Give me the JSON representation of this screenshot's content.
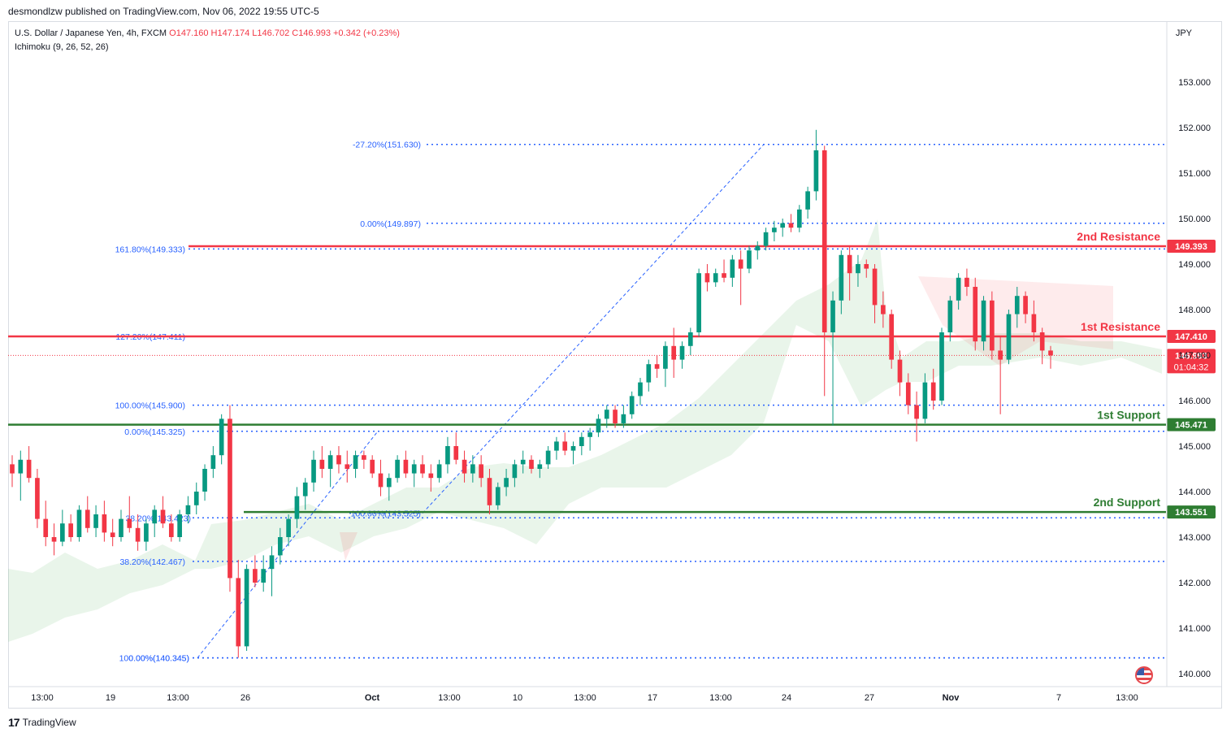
{
  "header": {
    "publish_line": "desmondlzw published on TradingView.com, Nov 06, 2022 19:55 UTC-5",
    "symbol": "U.S. Dollar / Japanese Yen, 4h, FXCM",
    "ohlc": "O147.160 H147.174 L146.702 C146.993 +0.342 (+0.23%)",
    "indicator": "Ichimoku (9, 26, 52, 26)",
    "currency": "JPY"
  },
  "footer": {
    "brand": "TradingView",
    "logo": "tv-logo"
  },
  "chart_data": {
    "type": "candlestick",
    "ylim": [
      140.0,
      153.0
    ],
    "y_ticks": [
      "153.000",
      "152.000",
      "151.000",
      "150.000",
      "149.000",
      "148.000",
      "147.000",
      "146.000",
      "145.000",
      "144.000",
      "143.000",
      "142.000",
      "141.000",
      "140.000"
    ],
    "x_ticks": [
      "13:00",
      "19",
      "13:00",
      "26",
      "Oct",
      "13:00",
      "10",
      "13:00",
      "17",
      "13:00",
      "24",
      "27",
      "Nov",
      "7",
      "13:00"
    ],
    "x_tick_bold": [
      "Oct",
      "Nov"
    ],
    "levels": [
      {
        "label": "2nd Resistance",
        "price": 149.393,
        "price_label": "149.393",
        "color": "#f23645"
      },
      {
        "label": "1st Resistance",
        "price": 147.41,
        "price_label": "147.410",
        "color": "#f23645"
      },
      {
        "label": "1st Support",
        "price": 145.471,
        "price_label": "145.471",
        "color": "#2e7d32"
      },
      {
        "label": "2nd Support",
        "price": 143.551,
        "price_label": "143.551",
        "color": "#2e7d32"
      }
    ],
    "last_price": {
      "price": 146.993,
      "label": "146.993",
      "countdown": "01:04:32",
      "color": "#f23645"
    },
    "fib_levels": [
      {
        "label": "-27.20%(151.630)",
        "price": 151.63
      },
      {
        "label": "0.00%(149.897)",
        "price": 149.897
      },
      {
        "label": "161.80%(149.333)",
        "price": 149.333
      },
      {
        "label": "127.20%(147.411)",
        "price": 147.411
      },
      {
        "label": "100.00%(145.900)",
        "price": 145.9
      },
      {
        "label": "0.00%(145.325)",
        "price": 145.325
      },
      {
        "label": "38.20%(143.423)",
        "price": 143.423
      },
      {
        "label": "100.00%(143.525)",
        "price": 143.525
      },
      {
        "label": "38.20%(142.467)",
        "price": 142.467
      },
      {
        "label": "100.00%(140.345)",
        "price": 140.345
      },
      {
        "label": "0.00%(140.345)",
        "price": 140.345
      }
    ],
    "candles": [
      [
        144.6,
        144.8,
        144.1,
        144.4
      ],
      [
        144.4,
        144.9,
        143.8,
        144.7
      ],
      [
        144.7,
        145.0,
        144.2,
        144.3
      ],
      [
        144.3,
        144.5,
        143.2,
        143.4
      ],
      [
        143.4,
        143.8,
        142.8,
        143.0
      ],
      [
        143.0,
        143.3,
        142.6,
        142.9
      ],
      [
        142.9,
        143.6,
        142.8,
        143.3
      ],
      [
        143.3,
        143.5,
        142.9,
        143.0
      ],
      [
        143.0,
        143.7,
        142.9,
        143.6
      ],
      [
        143.6,
        143.9,
        143.1,
        143.2
      ],
      [
        143.2,
        143.7,
        143.0,
        143.5
      ],
      [
        143.5,
        143.8,
        142.9,
        143.1
      ],
      [
        143.1,
        143.4,
        142.8,
        143.0
      ],
      [
        143.0,
        143.6,
        142.9,
        143.4
      ],
      [
        143.4,
        143.9,
        143.1,
        143.2
      ],
      [
        143.2,
        143.5,
        142.7,
        142.9
      ],
      [
        142.9,
        143.4,
        142.7,
        143.3
      ],
      [
        143.3,
        143.7,
        143.0,
        143.6
      ],
      [
        143.6,
        143.9,
        143.2,
        143.3
      ],
      [
        143.3,
        143.5,
        142.9,
        143.0
      ],
      [
        143.0,
        143.6,
        142.9,
        143.5
      ],
      [
        143.5,
        143.9,
        143.3,
        143.7
      ],
      [
        143.7,
        144.2,
        143.5,
        144.0
      ],
      [
        144.0,
        144.6,
        143.8,
        144.5
      ],
      [
        144.5,
        145.0,
        144.3,
        144.8
      ],
      [
        144.8,
        145.7,
        144.6,
        145.6
      ],
      [
        145.6,
        145.9,
        141.8,
        142.1
      ],
      [
        142.1,
        142.5,
        140.35,
        140.6
      ],
      [
        140.6,
        142.4,
        140.5,
        142.3
      ],
      [
        142.3,
        142.6,
        141.9,
        142.0
      ],
      [
        142.0,
        142.6,
        141.8,
        142.3
      ],
      [
        142.3,
        142.8,
        141.7,
        142.6
      ],
      [
        142.6,
        143.2,
        142.4,
        143.0
      ],
      [
        143.0,
        143.5,
        142.8,
        143.4
      ],
      [
        143.4,
        144.1,
        143.2,
        143.9
      ],
      [
        143.9,
        144.3,
        143.6,
        144.2
      ],
      [
        144.2,
        144.9,
        144.0,
        144.7
      ],
      [
        144.7,
        145.0,
        144.3,
        144.5
      ],
      [
        144.5,
        144.9,
        144.1,
        144.8
      ],
      [
        144.8,
        145.0,
        144.4,
        144.6
      ],
      [
        144.6,
        144.9,
        144.2,
        144.5
      ],
      [
        144.5,
        144.9,
        144.3,
        144.8
      ],
      [
        144.8,
        144.9,
        144.5,
        144.7
      ],
      [
        144.7,
        144.8,
        144.3,
        144.4
      ],
      [
        144.4,
        144.7,
        143.9,
        144.1
      ],
      [
        144.1,
        144.4,
        143.8,
        144.3
      ],
      [
        144.3,
        144.8,
        144.2,
        144.7
      ],
      [
        144.7,
        144.9,
        144.3,
        144.4
      ],
      [
        144.4,
        144.7,
        144.1,
        144.6
      ],
      [
        144.6,
        144.8,
        144.3,
        144.4
      ],
      [
        144.4,
        144.6,
        144.0,
        144.3
      ],
      [
        144.3,
        144.7,
        144.2,
        144.6
      ],
      [
        144.6,
        145.2,
        144.4,
        145.0
      ],
      [
        145.0,
        145.3,
        144.6,
        144.7
      ],
      [
        144.7,
        144.9,
        144.2,
        144.4
      ],
      [
        144.4,
        144.8,
        144.2,
        144.6
      ],
      [
        144.6,
        144.8,
        144.1,
        144.3
      ],
      [
        144.3,
        144.5,
        143.5,
        143.7
      ],
      [
        143.7,
        144.2,
        143.6,
        144.1
      ],
      [
        144.1,
        144.5,
        143.9,
        144.3
      ],
      [
        144.3,
        144.7,
        144.1,
        144.6
      ],
      [
        144.6,
        144.9,
        144.4,
        144.7
      ],
      [
        144.7,
        144.8,
        144.4,
        144.5
      ],
      [
        144.5,
        144.7,
        144.3,
        144.6
      ],
      [
        144.6,
        145.0,
        144.5,
        144.9
      ],
      [
        144.9,
        145.2,
        144.7,
        145.1
      ],
      [
        145.1,
        145.3,
        144.8,
        144.9
      ],
      [
        144.9,
        145.1,
        144.6,
        145.0
      ],
      [
        145.0,
        145.3,
        144.8,
        145.2
      ],
      [
        145.2,
        145.4,
        144.9,
        145.3
      ],
      [
        145.3,
        145.7,
        145.2,
        145.6
      ],
      [
        145.6,
        145.9,
        145.4,
        145.8
      ],
      [
        145.8,
        145.9,
        145.4,
        145.5
      ],
      [
        145.5,
        145.9,
        145.4,
        145.7
      ],
      [
        145.7,
        146.2,
        145.6,
        146.1
      ],
      [
        146.1,
        146.5,
        145.9,
        146.4
      ],
      [
        146.4,
        146.9,
        146.2,
        146.8
      ],
      [
        146.8,
        147.0,
        146.5,
        146.7
      ],
      [
        146.7,
        147.3,
        146.3,
        147.2
      ],
      [
        147.2,
        147.6,
        146.5,
        146.9
      ],
      [
        146.9,
        147.3,
        146.7,
        147.2
      ],
      [
        147.2,
        147.6,
        147.0,
        147.5
      ],
      [
        147.5,
        148.9,
        147.4,
        148.8
      ],
      [
        148.8,
        149.0,
        148.4,
        148.6
      ],
      [
        148.6,
        148.9,
        148.5,
        148.8
      ],
      [
        148.8,
        149.1,
        148.6,
        148.7
      ],
      [
        148.7,
        149.2,
        148.5,
        149.1
      ],
      [
        149.1,
        149.3,
        148.1,
        148.9
      ],
      [
        148.9,
        149.4,
        148.8,
        149.3
      ],
      [
        149.3,
        149.5,
        149.1,
        149.4
      ],
      [
        149.4,
        149.8,
        149.3,
        149.7
      ],
      [
        149.7,
        149.95,
        149.5,
        149.8
      ],
      [
        149.8,
        150.0,
        149.6,
        149.9
      ],
      [
        149.9,
        150.1,
        149.7,
        149.8
      ],
      [
        149.8,
        150.3,
        149.7,
        150.2
      ],
      [
        150.2,
        150.7,
        150.0,
        150.6
      ],
      [
        150.6,
        151.95,
        150.4,
        151.5
      ],
      [
        151.5,
        151.6,
        146.1,
        147.5
      ],
      [
        147.5,
        148.4,
        145.45,
        148.2
      ],
      [
        148.2,
        149.3,
        147.9,
        149.2
      ],
      [
        149.2,
        149.4,
        148.2,
        148.8
      ],
      [
        148.8,
        149.2,
        148.5,
        149.0
      ],
      [
        149.0,
        149.1,
        148.7,
        148.9
      ],
      [
        148.9,
        149.0,
        147.7,
        148.1
      ],
      [
        148.1,
        148.4,
        147.6,
        147.9
      ],
      [
        147.9,
        148.0,
        146.7,
        146.9
      ],
      [
        146.9,
        147.1,
        146.1,
        146.4
      ],
      [
        146.4,
        146.6,
        145.7,
        145.9
      ],
      [
        145.9,
        146.2,
        145.1,
        145.6
      ],
      [
        145.6,
        146.6,
        145.5,
        146.4
      ],
      [
        146.4,
        146.7,
        145.8,
        146.0
      ],
      [
        146.0,
        147.6,
        145.9,
        147.5
      ],
      [
        147.5,
        148.3,
        147.3,
        148.2
      ],
      [
        148.2,
        148.8,
        148.0,
        148.7
      ],
      [
        148.7,
        148.9,
        148.3,
        148.5
      ],
      [
        148.5,
        148.7,
        147.1,
        147.3
      ],
      [
        147.3,
        148.3,
        147.1,
        148.2
      ],
      [
        148.2,
        148.4,
        146.9,
        147.1
      ],
      [
        147.1,
        147.4,
        145.7,
        146.9
      ],
      [
        146.9,
        148.0,
        146.8,
        147.9
      ],
      [
        147.9,
        148.5,
        147.6,
        148.3
      ],
      [
        148.3,
        148.4,
        147.7,
        147.9
      ],
      [
        147.9,
        148.2,
        147.3,
        147.5
      ],
      [
        147.5,
        147.6,
        146.8,
        147.1
      ],
      [
        147.1,
        147.2,
        146.7,
        146.993
      ]
    ],
    "ichimoku_cloud": "filled band (green bullish / red bearish)"
  }
}
